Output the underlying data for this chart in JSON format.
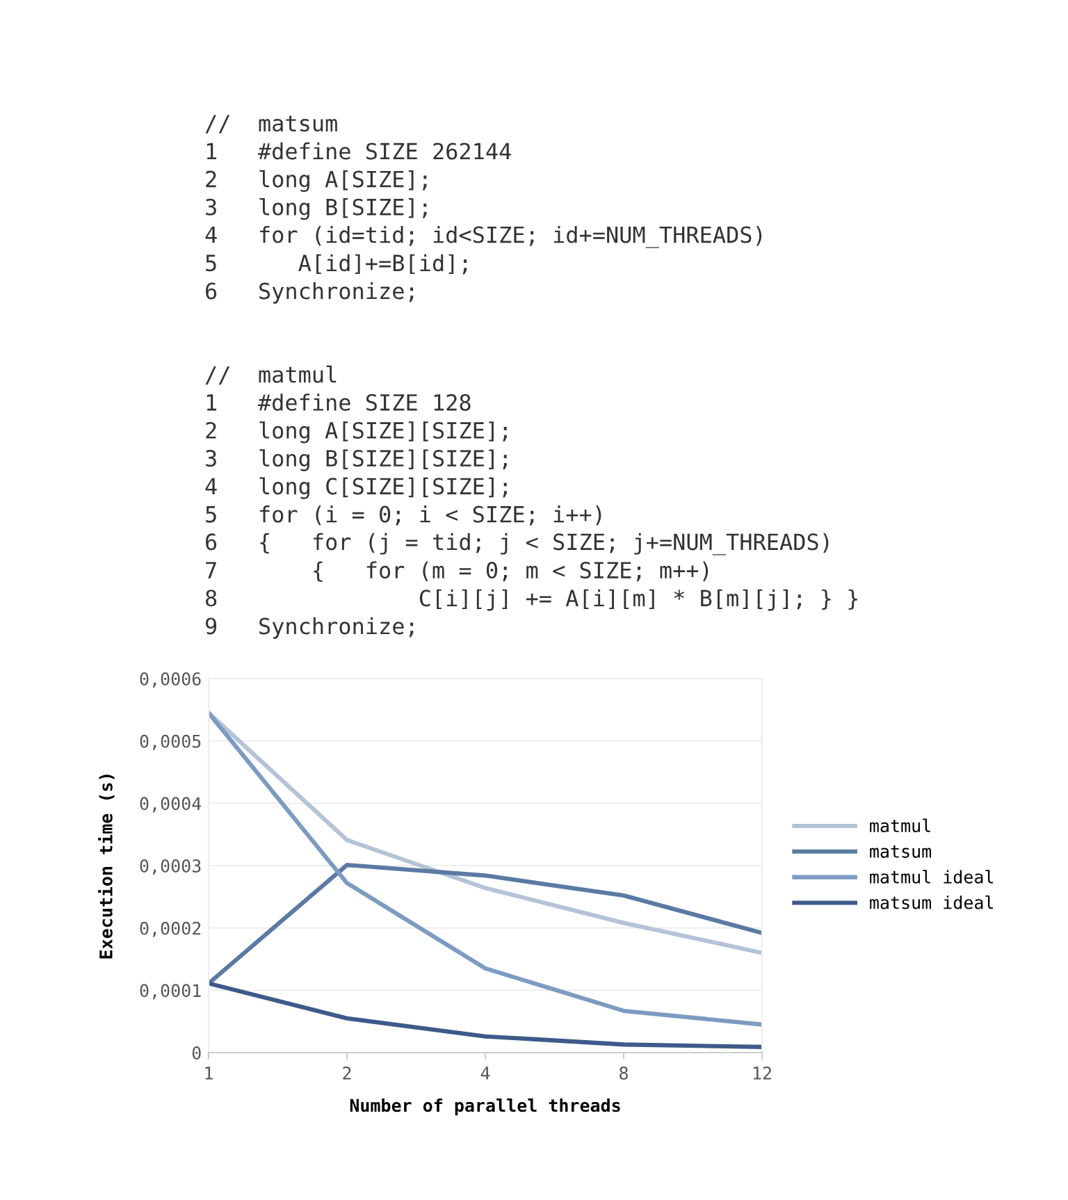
{
  "chart_data": {
    "type": "line",
    "annotations": [
      "//  matsum",
      "1   #define SIZE 262144",
      "2   long A[SIZE];",
      "3   long B[SIZE];",
      "4   for (id=tid; id<SIZE; id+=NUM_THREADS)",
      "5      A[id]+=B[id];",
      "6   Synchronize;",
      "//  matmul",
      "1   #define SIZE 128",
      "2   long A[SIZE][SIZE];",
      "3   long B[SIZE][SIZE];",
      "4   long C[SIZE][SIZE];",
      "5   for (i = 0; i < SIZE; i++)",
      "6   {   for (j = tid; j < SIZE; j+=NUM_THREADS)",
      "7       {   for (m = 0; m < SIZE; m++)",
      "8               C[i][j] += A[i][m] * B[m][j]; } }",
      "9   Synchronize;"
    ],
    "xlabel": "Number of parallel threads",
    "ylabel": "Execution time (s)",
    "categories": [
      "1",
      "2",
      "4",
      "8",
      "12"
    ],
    "ylim": [
      0,
      0.0006
    ],
    "yticks": [
      0,
      {
        "value": 0.0001,
        "label": "0,0001"
      },
      {
        "value": 0.0002,
        "label": "0,0002"
      },
      {
        "value": 0.0003,
        "label": "0,0003"
      },
      {
        "value": 0.0004,
        "label": "0,0004"
      },
      {
        "value": 0.0005,
        "label": "0,0005"
      },
      {
        "value": 0.0006,
        "label": "0,0006"
      }
    ],
    "grid": "y",
    "legend": "right",
    "series": [
      {
        "name": "matmul",
        "color": "#b4c3d6",
        "values": [
          0.000545,
          0.000341,
          0.000264,
          0.000208,
          0.00016
        ]
      },
      {
        "name": "matsum",
        "color": "#5a7aa3",
        "values": [
          0.000111,
          0.000301,
          0.000284,
          0.000252,
          0.000192
        ]
      },
      {
        "name": "matmul ideal",
        "color": "#7d9bc2",
        "values": [
          0.000545,
          0.000272,
          0.000135,
          6.7e-05,
          4.5e-05
        ]
      },
      {
        "name": "matsum ideal",
        "color": "#3d5a8a",
        "values": [
          0.000111,
          5.5e-05,
          2.6e-05,
          1.3e-05,
          9e-06
        ]
      }
    ]
  }
}
